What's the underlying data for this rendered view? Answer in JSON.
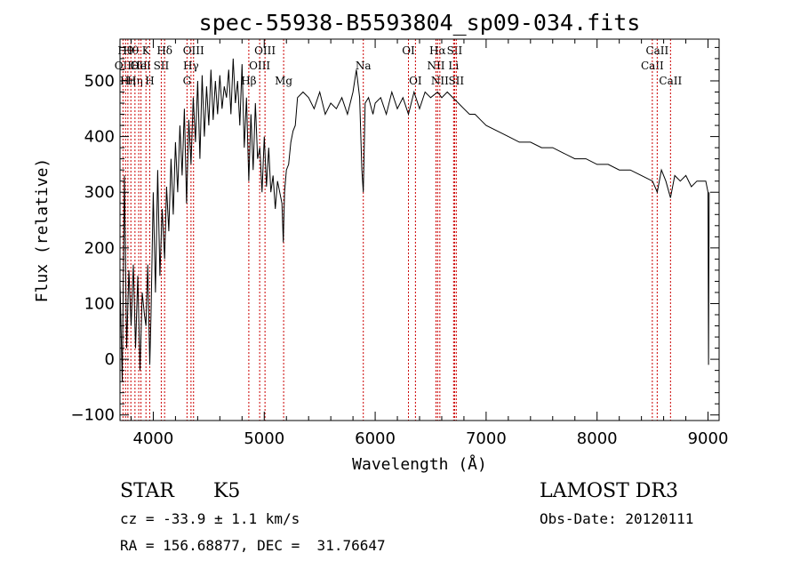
{
  "chart_data": {
    "type": "line",
    "title": "spec-55938-B5593804_sp09-034.fits",
    "xlabel": "Wavelength (Å)",
    "ylabel": "Flux (relative)",
    "xlim": [
      3700,
      9100
    ],
    "ylim": [
      -110,
      575
    ],
    "xticks": [
      4000,
      5000,
      6000,
      7000,
      8000,
      9000
    ],
    "yticks": [
      -100,
      0,
      100,
      200,
      300,
      400,
      500
    ],
    "series": [
      {
        "name": "flux",
        "x": [
          3700,
          3720,
          3740,
          3760,
          3780,
          3800,
          3820,
          3840,
          3860,
          3880,
          3900,
          3920,
          3934,
          3950,
          3968,
          3980,
          4000,
          4020,
          4040,
          4060,
          4080,
          4102,
          4120,
          4140,
          4160,
          4180,
          4200,
          4220,
          4240,
          4260,
          4280,
          4300,
          4320,
          4340,
          4360,
          4380,
          4400,
          4420,
          4440,
          4460,
          4480,
          4500,
          4520,
          4540,
          4560,
          4580,
          4600,
          4620,
          4640,
          4660,
          4680,
          4700,
          4720,
          4740,
          4760,
          4780,
          4800,
          4820,
          4840,
          4861,
          4880,
          4900,
          4920,
          4940,
          4960,
          4980,
          5000,
          5020,
          5040,
          5060,
          5080,
          5100,
          5120,
          5140,
          5160,
          5172,
          5183,
          5200,
          5220,
          5240,
          5260,
          5280,
          5300,
          5350,
          5400,
          5450,
          5500,
          5550,
          5600,
          5650,
          5700,
          5750,
          5800,
          5830,
          5860,
          5880,
          5893,
          5910,
          5940,
          5980,
          6000,
          6050,
          6100,
          6150,
          6200,
          6250,
          6300,
          6350,
          6400,
          6450,
          6500,
          6563,
          6600,
          6650,
          6700,
          6750,
          6800,
          6850,
          6900,
          6950,
          7000,
          7100,
          7200,
          7300,
          7400,
          7500,
          7600,
          7700,
          7800,
          7900,
          8000,
          8100,
          8200,
          8300,
          8400,
          8500,
          8542,
          8580,
          8620,
          8662,
          8700,
          8750,
          8800,
          8850,
          8900,
          8950,
          8980,
          9000,
          9005,
          9010
        ],
        "values": [
          140,
          -40,
          330,
          20,
          160,
          60,
          170,
          20,
          150,
          -20,
          120,
          80,
          60,
          170,
          -10,
          80,
          300,
          120,
          340,
          150,
          270,
          180,
          310,
          230,
          360,
          260,
          390,
          300,
          420,
          330,
          450,
          280,
          430,
          350,
          470,
          390,
          500,
          360,
          510,
          400,
          490,
          420,
          520,
          430,
          500,
          440,
          510,
          450,
          490,
          470,
          520,
          440,
          540,
          460,
          500,
          420,
          530,
          380,
          470,
          320,
          440,
          340,
          460,
          360,
          380,
          300,
          400,
          310,
          380,
          300,
          330,
          270,
          320,
          300,
          280,
          210,
          300,
          340,
          350,
          390,
          410,
          420,
          470,
          480,
          470,
          450,
          480,
          440,
          460,
          450,
          470,
          440,
          480,
          520,
          470,
          340,
          300,
          460,
          470,
          440,
          460,
          470,
          440,
          480,
          450,
          470,
          440,
          480,
          450,
          480,
          470,
          480,
          470,
          480,
          470,
          460,
          450,
          440,
          440,
          430,
          420,
          410,
          400,
          390,
          390,
          380,
          380,
          370,
          360,
          360,
          350,
          350,
          340,
          340,
          330,
          320,
          300,
          340,
          320,
          290,
          330,
          320,
          330,
          310,
          320,
          320,
          320,
          300,
          -10,
          300
        ]
      }
    ],
    "lines": [
      {
        "w": 3727,
        "label": "OII",
        "row": 2
      },
      {
        "w": 3750,
        "label": "Hθ",
        "row": 1
      },
      {
        "w": 3771,
        "label": "Hη",
        "row": 3
      },
      {
        "w": 3798,
        "label": "Hθ",
        "row": 1
      },
      {
        "w": 3835,
        "label": "Hη",
        "row": 3
      },
      {
        "w": 3869,
        "label": "OII",
        "row": 2
      },
      {
        "w": 3889,
        "label": "HeI",
        "row": 2
      },
      {
        "w": 3934,
        "label": "K",
        "row": 1
      },
      {
        "w": 3968,
        "label": "H",
        "row": 3
      },
      {
        "w": 4072,
        "label": "SII",
        "row": 2
      },
      {
        "w": 4102,
        "label": "Hδ",
        "row": 1
      },
      {
        "w": 4304,
        "label": "G",
        "row": 3
      },
      {
        "w": 4340,
        "label": "Hγ",
        "row": 2
      },
      {
        "w": 4363,
        "label": "OIII",
        "row": 1
      },
      {
        "w": 4861,
        "label": "Hβ",
        "row": 3
      },
      {
        "w": 4959,
        "label": "OIII",
        "row": 2
      },
      {
        "w": 5007,
        "label": "OIII",
        "row": 1
      },
      {
        "w": 5175,
        "label": "Mg",
        "row": 3
      },
      {
        "w": 5893,
        "label": "Na",
        "row": 2
      },
      {
        "w": 6300,
        "label": "OI",
        "row": 1
      },
      {
        "w": 6363,
        "label": "OI",
        "row": 3
      },
      {
        "w": 6548,
        "label": "NII",
        "row": 2
      },
      {
        "w": 6563,
        "label": "Hα",
        "row": 1
      },
      {
        "w": 6583,
        "label": "NII",
        "row": 3
      },
      {
        "w": 6707,
        "label": "Li",
        "row": 2
      },
      {
        "w": 6716,
        "label": "SII",
        "row": 1
      },
      {
        "w": 6731,
        "label": "SII",
        "row": 3
      },
      {
        "w": 8498,
        "label": "CaII",
        "row": 2
      },
      {
        "w": 8542,
        "label": "CaII",
        "row": 1
      },
      {
        "w": 8662,
        "label": "CaII",
        "row": 3
      }
    ]
  },
  "info": {
    "object_type": "STAR",
    "subclass": "K5",
    "survey": "LAMOST DR3",
    "cz": "cz = -33.9 ± 1.1 km/s",
    "obs_date": "Obs-Date: 20120111",
    "coords": "RA = 156.68877, DEC =  31.76647"
  },
  "colors": {
    "line": "#000000",
    "marker": "#cc0000",
    "axis": "#000000",
    "background": "#ffffff"
  }
}
